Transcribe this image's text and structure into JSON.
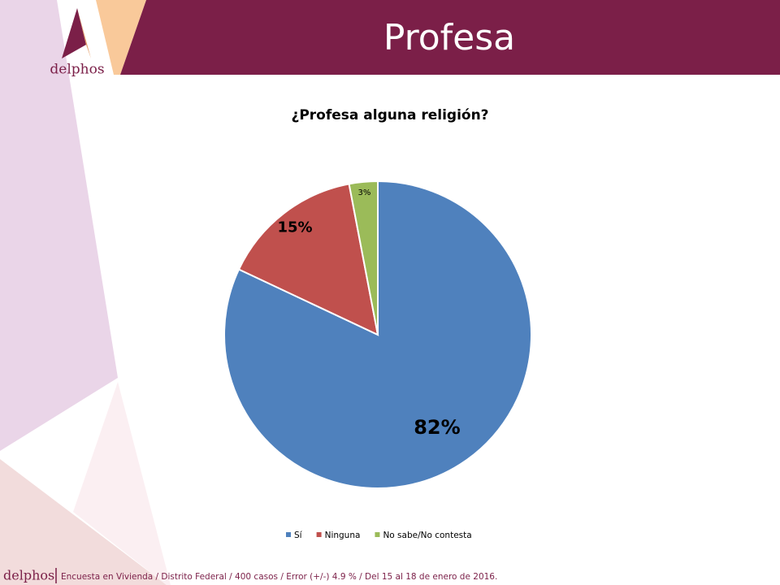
{
  "header": {
    "title": "Profesa",
    "logo": "delphos"
  },
  "chart_data": {
    "type": "pie",
    "title": "¿Profesa alguna religión?",
    "categories": [
      "Sí",
      "Ninguna",
      "No sabe/No contesta"
    ],
    "values": [
      82,
      15,
      3
    ],
    "value_labels": [
      "82%",
      "15%",
      "3%"
    ],
    "colors": [
      "#4f81bd",
      "#c0504d",
      "#9bbb59"
    ],
    "legend": "bottom"
  },
  "footer": {
    "brand": "delphos",
    "note": "Encuesta en Vivienda / Distrito Federal / 400 casos / Error (+/-) 4.9 % / Del 15 al 18 de enero de 2016."
  }
}
